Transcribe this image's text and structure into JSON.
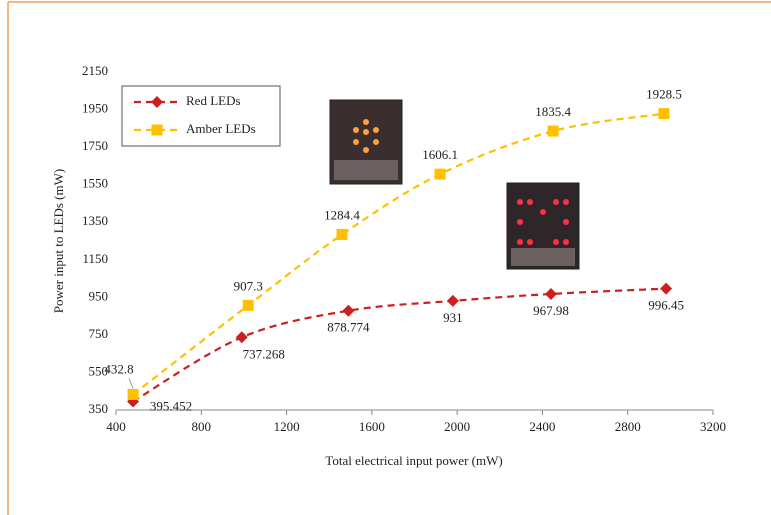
{
  "chart_data": {
    "type": "line",
    "x_label": "Total electrical input power (mW)",
    "y_label": "Power input to LEDs (mW)",
    "xlim": [
      400,
      3200
    ],
    "xticks": [
      400,
      800,
      1200,
      1600,
      2000,
      2400,
      2800,
      3200
    ],
    "ylim": [
      350,
      2150
    ],
    "yticks": [
      350,
      550,
      750,
      950,
      1150,
      1350,
      1550,
      1750,
      1950,
      2150
    ],
    "grid": false,
    "legend": "upper left",
    "series": [
      {
        "name": "Red LEDs",
        "color": "#cc1f1f",
        "marker": "diamond",
        "x": [
          480,
          990,
          1490,
          1980,
          2440,
          2980
        ],
        "values": [
          395.452,
          737.268,
          878.774,
          931,
          967.98,
          996.45
        ]
      },
      {
        "name": "Amber LEDs",
        "color": "#ffc000",
        "marker": "square",
        "x": [
          480,
          1020,
          1460,
          1920,
          2450,
          2970
        ],
        "values": [
          432.8,
          907.3,
          1284.4,
          1606.1,
          1835.4,
          1928.5
        ]
      }
    ]
  }
}
